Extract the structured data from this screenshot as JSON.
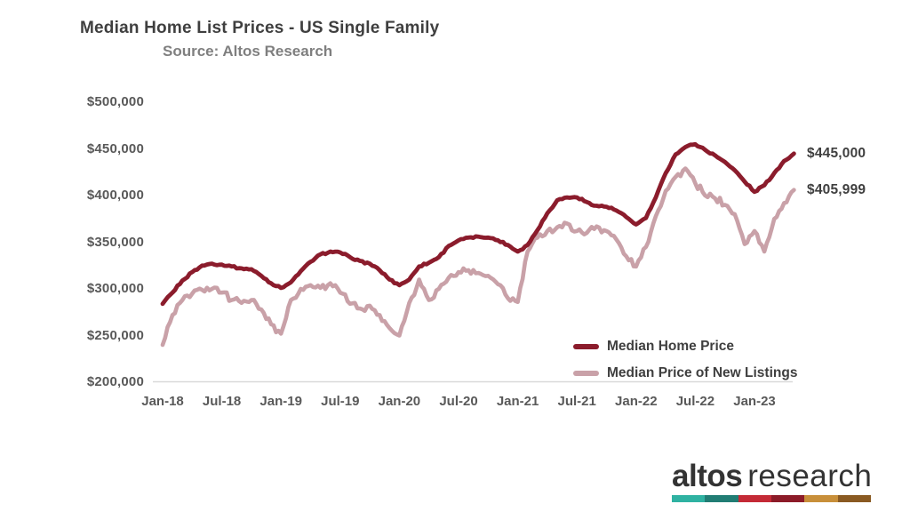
{
  "chart_data": {
    "type": "line",
    "title": "Median Home List Prices - US Single Family",
    "subtitle": "Source: Altos Research",
    "unit": "USD",
    "x_start": "Jan-18",
    "x_end": "May-23",
    "x_step": "monthly",
    "xticks": [
      "Jan-18",
      "Jul-18",
      "Jan-19",
      "Jul-19",
      "Jan-20",
      "Jul-20",
      "Jan-21",
      "Jul-21",
      "Jan-22",
      "Jul-22",
      "Jan-23"
    ],
    "ytick_labels": [
      "$500,000",
      "$450,000",
      "$400,000",
      "$350,000",
      "$300,000",
      "$250,000",
      "$200,000"
    ],
    "ytick_values": [
      500000,
      450000,
      400000,
      350000,
      300000,
      250000,
      200000
    ],
    "ylim": [
      200000,
      500000
    ],
    "grid": false,
    "legend_position": "inside-bottom-right",
    "series": [
      {
        "name": "Median Home Price",
        "color": "#8B1C2C",
        "end_label": "$445,000",
        "end_value": 445000,
        "values_usd_thousands": [
          284,
          296,
          309,
          318,
          325,
          327,
          326,
          324,
          322,
          321,
          314,
          306,
          301,
          307,
          319,
          329,
          337,
          340,
          339,
          334,
          330,
          327,
          320,
          310,
          304,
          310,
          324,
          328,
          334,
          346,
          352,
          355,
          356,
          355,
          352,
          347,
          340,
          347,
          363,
          381,
          395,
          398,
          398,
          393,
          389,
          388,
          384,
          377,
          369,
          376,
          398,
          424,
          444,
          452,
          455,
          449,
          443,
          436,
          427,
          415,
          404,
          411,
          424,
          437,
          445
        ]
      },
      {
        "name": "Median Price of New Listings",
        "color": "#C9A1A8",
        "end_label": "$405,999",
        "end_value": 405999,
        "values_usd_thousands": [
          240,
          272,
          288,
          295,
          299,
          300,
          296,
          288,
          285,
          288,
          278,
          262,
          252,
          288,
          300,
          304,
          301,
          306,
          296,
          284,
          279,
          282,
          272,
          258,
          250,
          285,
          310,
          288,
          300,
          312,
          318,
          320,
          317,
          314,
          305,
          290,
          286,
          340,
          355,
          362,
          366,
          370,
          362,
          360,
          367,
          362,
          353,
          335,
          324,
          345,
          378,
          405,
          420,
          429,
          413,
          400,
          397,
          390,
          380,
          348,
          362,
          340,
          375,
          392,
          406
        ]
      }
    ],
    "axis_line_color": "#D9D9D9"
  },
  "logo": {
    "word1": "altos",
    "word2": "research",
    "bar_colors": [
      "#2FB2A2",
      "#217D74",
      "#C42A36",
      "#8C1B28",
      "#C88F3A",
      "#8A5A22"
    ]
  }
}
